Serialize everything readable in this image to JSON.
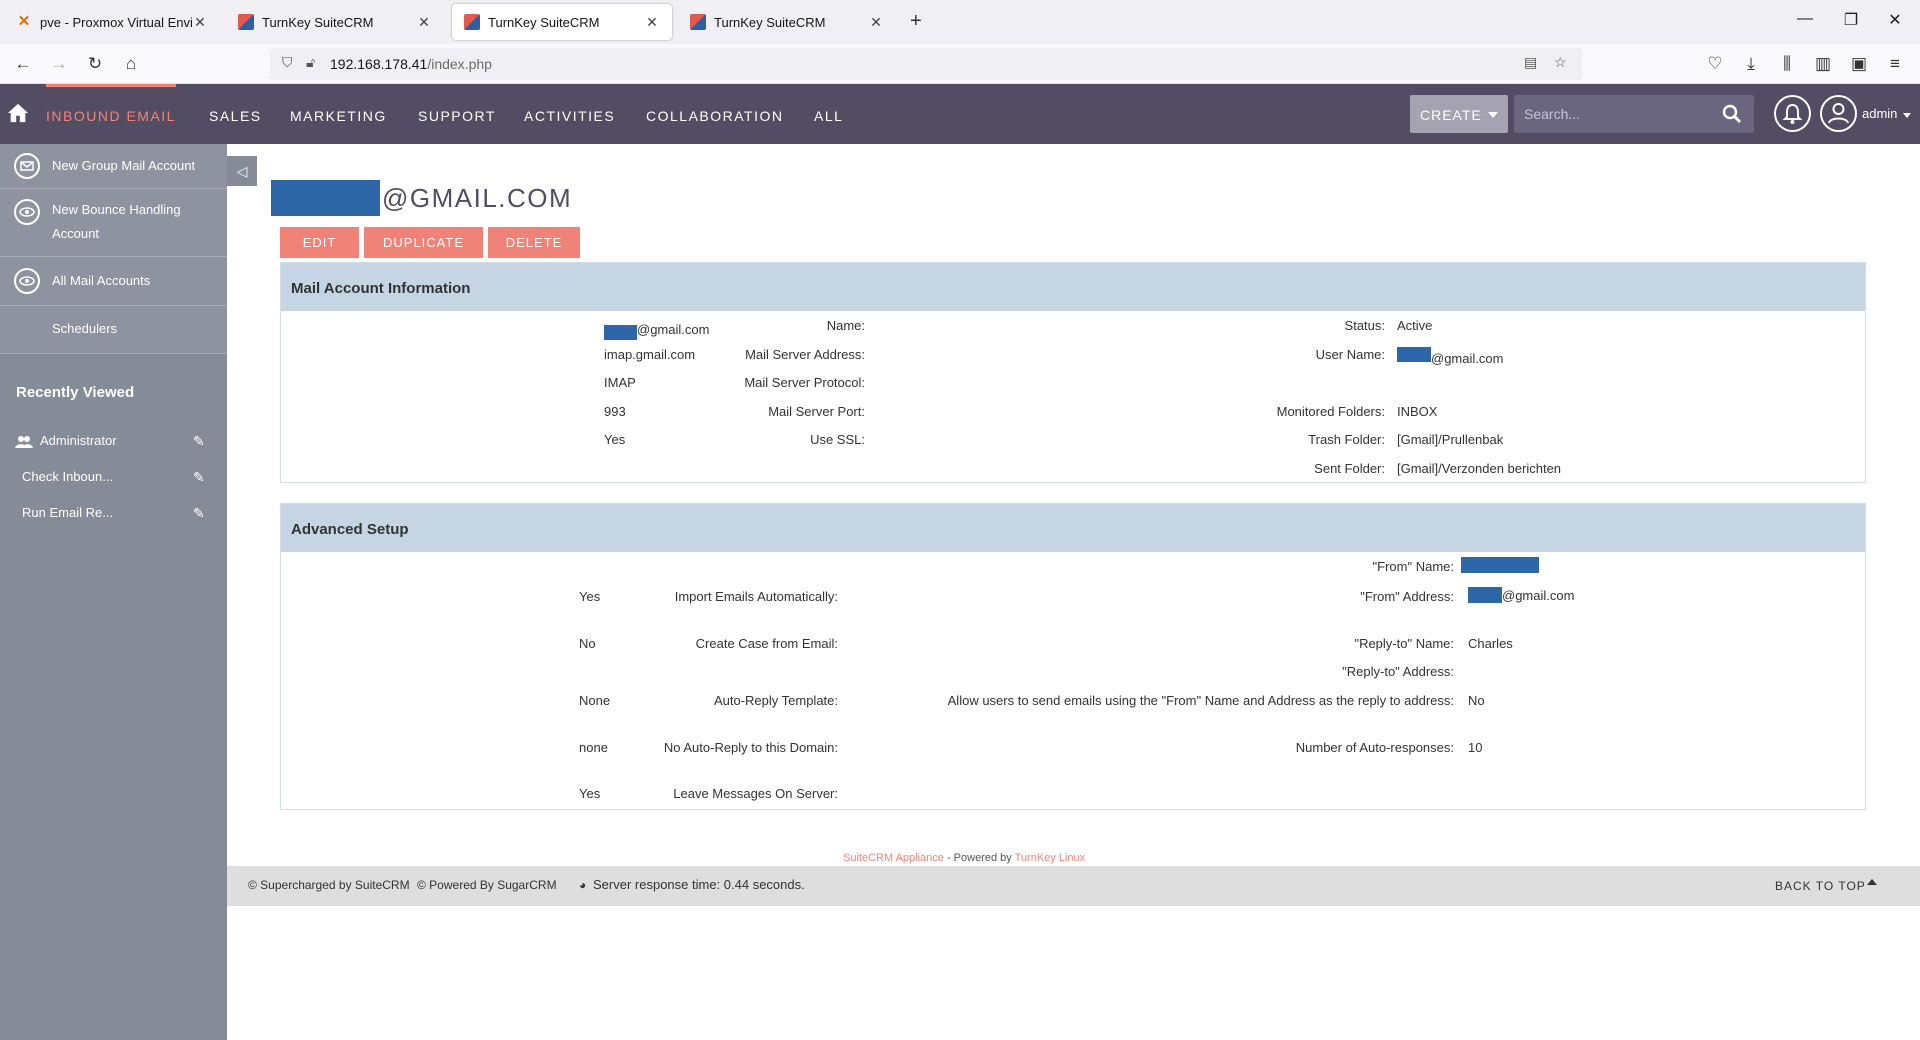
{
  "browser": {
    "tabs": [
      {
        "title": "pve - Proxmox Virtual Environm",
        "active": false
      },
      {
        "title": "TurnKey SuiteCRM",
        "active": false
      },
      {
        "title": "TurnKey SuiteCRM",
        "active": true
      },
      {
        "title": "TurnKey SuiteCRM",
        "active": false
      }
    ],
    "url_host": "192.168.178.41",
    "url_path": "/index.php"
  },
  "crm_nav": {
    "items": [
      "INBOUND EMAIL",
      "SALES",
      "MARKETING",
      "SUPPORT",
      "ACTIVITIES",
      "COLLABORATION",
      "ALL"
    ],
    "create_label": "CREATE",
    "search_placeholder": "Search...",
    "user_name": "admin"
  },
  "sidebar": {
    "actions": [
      {
        "label": "New Group Mail Account",
        "icon": "envelope-icon"
      },
      {
        "label": "New Bounce Handling Account",
        "icon": "eye-icon"
      },
      {
        "label": "All Mail Accounts",
        "icon": "eye-icon"
      },
      {
        "label": "Schedulers",
        "icon": ""
      }
    ],
    "recently_viewed_title": "Recently Viewed",
    "recent": [
      "Administrator",
      "Check Inboun...",
      "Run Email Re..."
    ]
  },
  "record": {
    "title_suffix": "@GMAIL.COM",
    "buttons": {
      "edit": "EDIT",
      "duplicate": "DUPLICATE",
      "delete": "DELETE"
    }
  },
  "mail_account_info": {
    "header": "Mail Account Information",
    "left": [
      {
        "label": "Name:",
        "value": "@gmail.com",
        "redacted": true
      },
      {
        "label": "Mail Server Address:",
        "value": "imap.gmail.com"
      },
      {
        "label": "Mail Server Protocol:",
        "value": "IMAP"
      },
      {
        "label": "Mail Server Port:",
        "value": "993"
      },
      {
        "label": "Use SSL:",
        "value": "Yes"
      }
    ],
    "right": [
      {
        "label": "Status:",
        "value": "Active"
      },
      {
        "label": "User Name:",
        "value": "@gmail.com",
        "redacted": true
      },
      {
        "label": "Monitored Folders:",
        "value": "INBOX"
      },
      {
        "label": "Trash Folder:",
        "value": "[Gmail]/Prullenbak"
      },
      {
        "label": "Sent Folder:",
        "value": "[Gmail]/Verzonden berichten"
      }
    ]
  },
  "advanced_setup": {
    "header": "Advanced Setup",
    "left": [
      {
        "label": "Import Emails Automatically:",
        "value": "Yes"
      },
      {
        "label": "Create Case from Email:",
        "value": "No"
      },
      {
        "label": "Auto-Reply Template:",
        "value": "None"
      },
      {
        "label": "No Auto-Reply to this Domain:",
        "value": "none"
      },
      {
        "label": "Leave Messages On Server:",
        "value": "Yes"
      }
    ],
    "right": [
      {
        "label": "\"From\" Name:",
        "value": "",
        "redacted": true
      },
      {
        "label": "\"From\" Address:",
        "value": "@gmail.com",
        "redacted": true
      },
      {
        "label": "\"Reply-to\" Name:",
        "value": "Charles"
      },
      {
        "label": "\"Reply-to\" Address:",
        "value": ""
      },
      {
        "label": "Allow users to send emails using the \"From\" Name and Address as the reply to address:",
        "value": "No"
      },
      {
        "label": "Number of Auto-responses:",
        "value": "10"
      }
    ]
  },
  "footer": {
    "appliance_link": "SuiteCRM Appliance",
    "powered_by_text": " - Powered by ",
    "turnkey_link": "TurnKey Linux",
    "supercharged": "© Supercharged by SuiteCRM",
    "powered_sugar": "© Powered By SugarCRM",
    "response_time": "Server response time: 0.44 seconds.",
    "back_to_top": "BACK TO TOP"
  },
  "colors": {
    "nav_bg": "#534d64",
    "accent": "#f08377",
    "sidebar_bg": "#868b98",
    "panel_header": "#c5d5e4",
    "redaction": "#2e67a8"
  }
}
